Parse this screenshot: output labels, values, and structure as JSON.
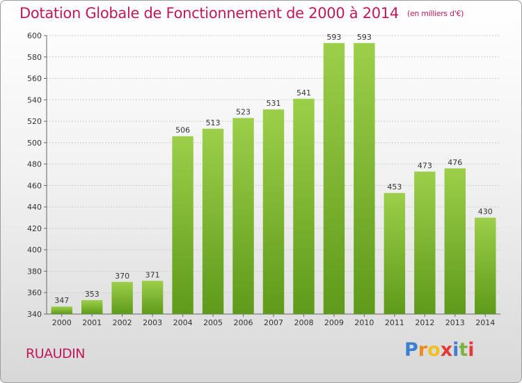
{
  "header": {
    "title": "Dotation Globale de Fonctionnement de 2000 à 2014",
    "unit": "(en milliers d'€)"
  },
  "footer": {
    "city": "RUAUDIN",
    "brand_letters": [
      "P",
      "r",
      "o",
      "x",
      "i",
      "t",
      "i"
    ]
  },
  "colors": {
    "title": "#c2185b",
    "bar_top": "#9ccf4a",
    "bar_bottom": "#5f9a1a",
    "grid": "#cccccc",
    "brand": [
      "#3a7fd0",
      "#f08a1c",
      "#f0c020",
      "#e53935",
      "#3a7fd0",
      "#7cb342",
      "#e53935"
    ]
  },
  "chart_data": {
    "type": "bar",
    "title": "Dotation Globale de Fonctionnement de 2000 à 2014",
    "subtitle": "(en milliers d'€)",
    "categories": [
      "2000",
      "2001",
      "2002",
      "2003",
      "2004",
      "2005",
      "2006",
      "2007",
      "2008",
      "2009",
      "2010",
      "2011",
      "2012",
      "2013",
      "2014"
    ],
    "values": [
      347,
      353,
      370,
      371,
      506,
      513,
      523,
      531,
      541,
      593,
      593,
      453,
      473,
      476,
      430
    ],
    "ylim": [
      340,
      600
    ],
    "yticks": [
      340,
      360,
      380,
      400,
      420,
      440,
      460,
      480,
      500,
      520,
      540,
      560,
      580,
      600
    ],
    "grid": true
  }
}
